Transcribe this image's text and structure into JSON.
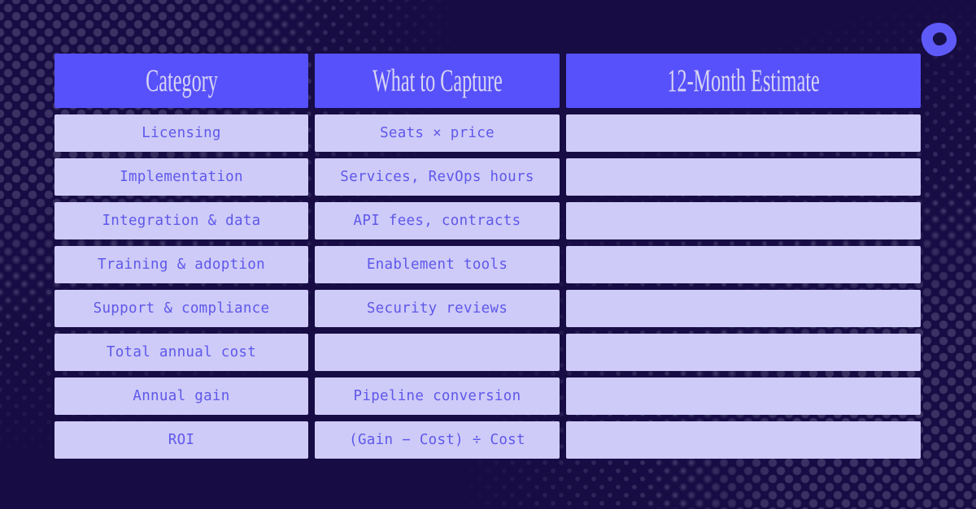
{
  "page": {
    "background_color": "#170c44",
    "dot_color": "#3b3263"
  },
  "logo": {
    "name": "outreach-logo-mark",
    "fill_color": "#5e5af8",
    "hole_color": "#171046"
  },
  "colors": {
    "header_bg": "#5751fb",
    "header_text": "#d8d5f3",
    "cell_bg": "#cecbf8",
    "cell_text": "#5f58ea"
  },
  "table": {
    "headers": [
      {
        "label": "Category"
      },
      {
        "label": "What to Capture"
      },
      {
        "label": "12-Month Estimate"
      }
    ],
    "rows": [
      {
        "category": "Licensing",
        "capture": "Seats × price",
        "estimate": ""
      },
      {
        "category": "Implementation",
        "capture": "Services, RevOps hours",
        "estimate": ""
      },
      {
        "category": "Integration & data",
        "capture": "API fees, contracts",
        "estimate": ""
      },
      {
        "category": "Training & adoption",
        "capture": "Enablement tools",
        "estimate": ""
      },
      {
        "category": "Support & compliance",
        "capture": "Security reviews",
        "estimate": ""
      },
      {
        "category": "Total annual cost",
        "capture": "",
        "estimate": ""
      },
      {
        "category": "Annual gain",
        "capture": "Pipeline conversion",
        "estimate": ""
      },
      {
        "category": "ROI",
        "capture": "(Gain − Cost) ÷ Cost",
        "estimate": ""
      }
    ]
  },
  "chart_data": {
    "type": "table",
    "title": "",
    "columns": [
      "Category",
      "What to Capture",
      "12-Month Estimate"
    ],
    "rows": [
      [
        "Licensing",
        "Seats × price",
        ""
      ],
      [
        "Implementation",
        "Services, RevOps hours",
        ""
      ],
      [
        "Integration & data",
        "API fees, contracts",
        ""
      ],
      [
        "Training & adoption",
        "Enablement tools",
        ""
      ],
      [
        "Support & compliance",
        "Security reviews",
        ""
      ],
      [
        "Total annual cost",
        "",
        ""
      ],
      [
        "Annual gain",
        "Pipeline conversion",
        ""
      ],
      [
        "ROI",
        "(Gain − Cost) ÷ Cost",
        ""
      ]
    ],
    "layout": "header row highlighted purple; third column cells left blank for fill-in"
  }
}
